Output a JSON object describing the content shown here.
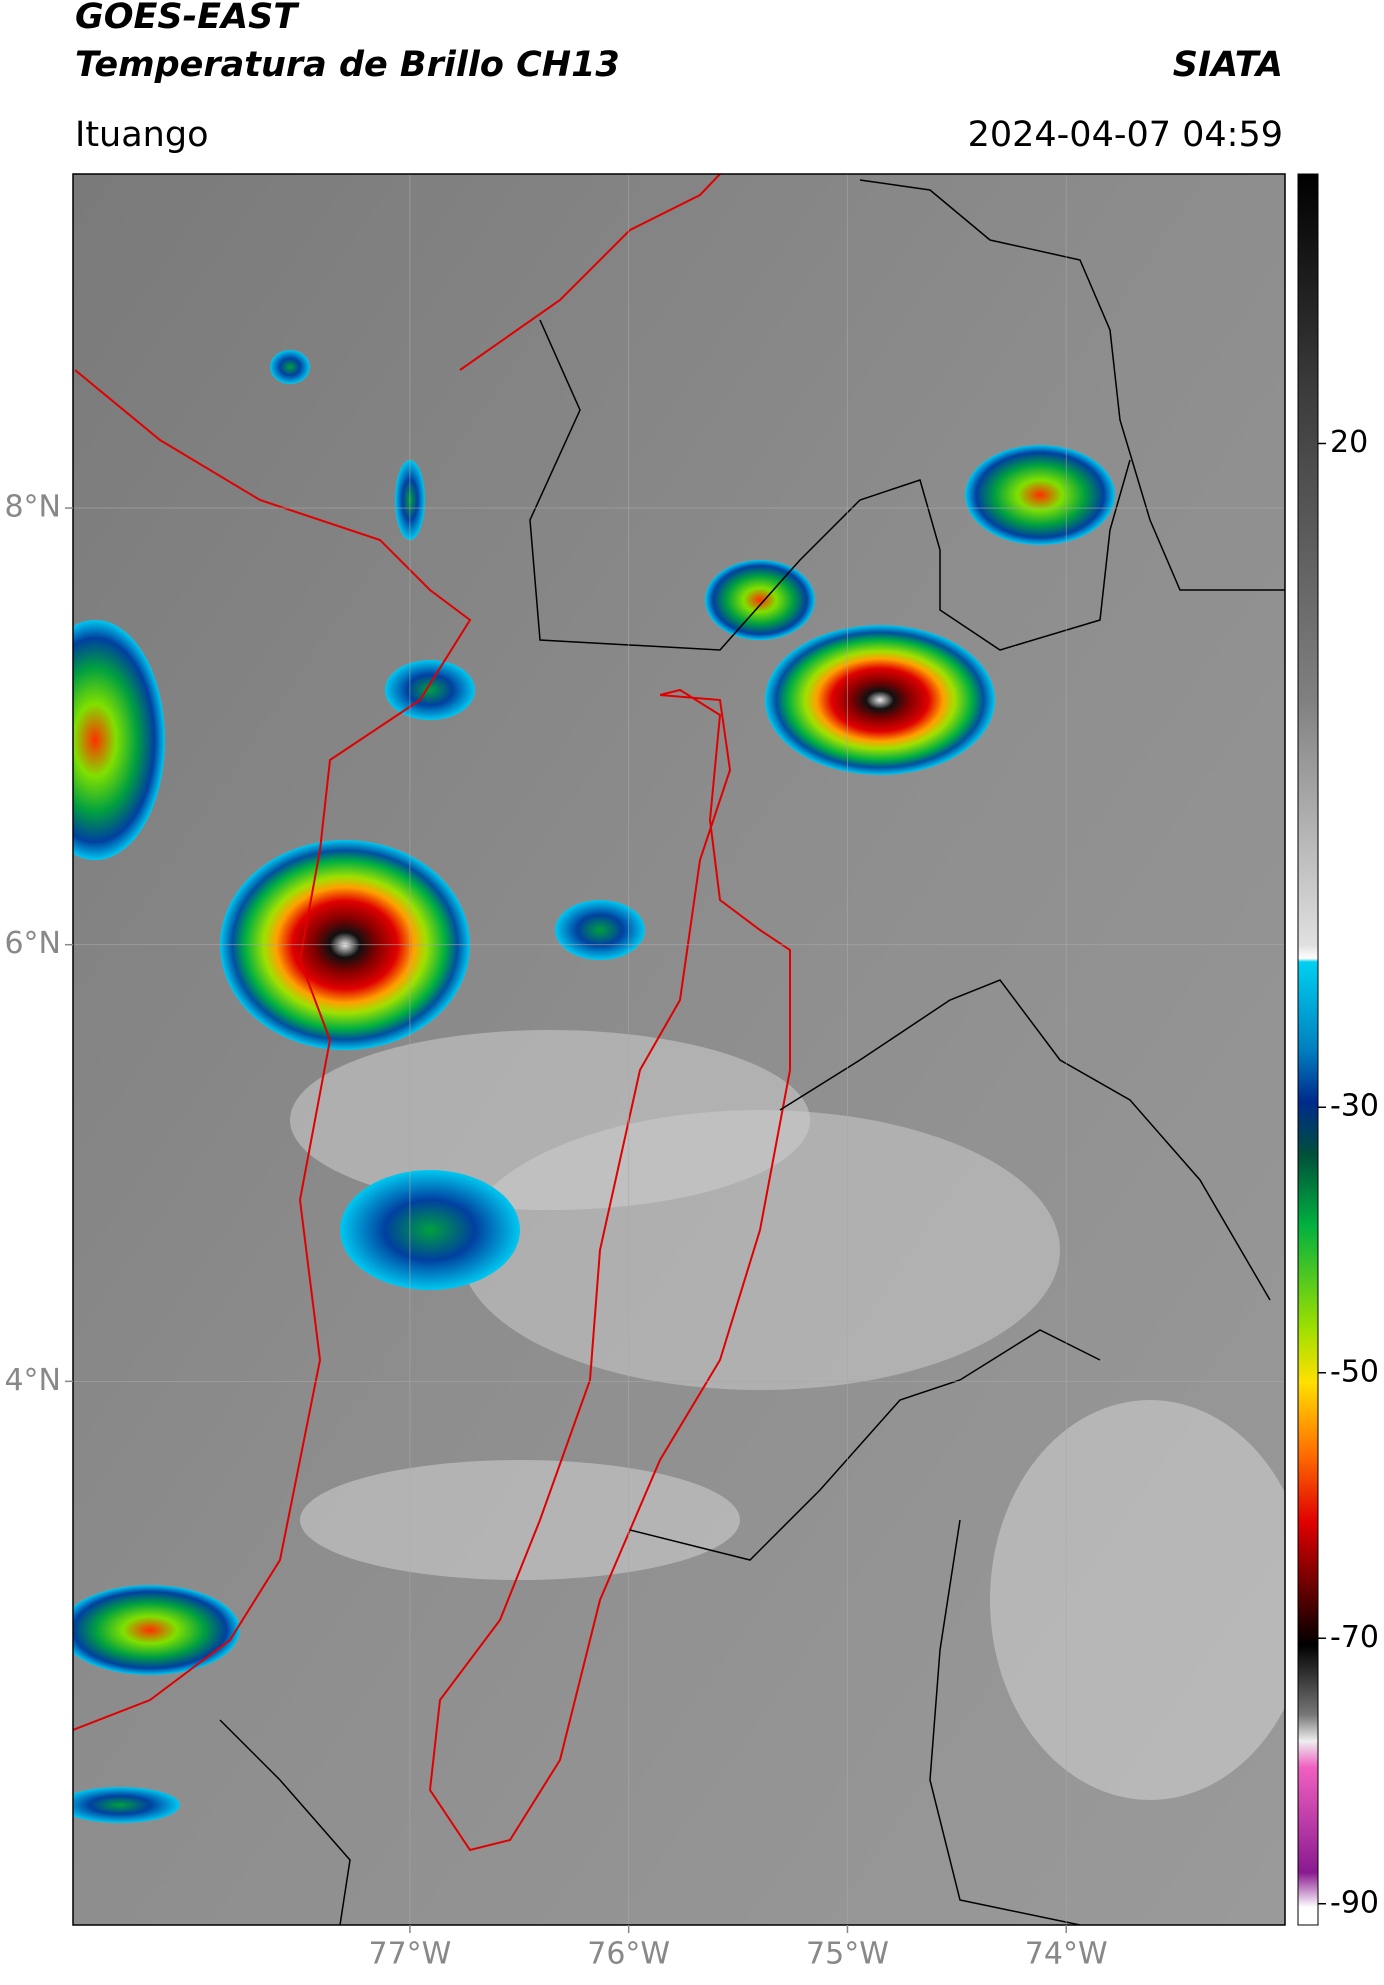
{
  "header": {
    "title": "GOES-EAST",
    "subtitle": "Temperatura de Brillo CH13",
    "source": "SIATA",
    "location": "Ituango",
    "datetime": "2024-04-07 04:59"
  },
  "map": {
    "xlim": [
      -78.54,
      -73.0
    ],
    "ylim": [
      1.51,
      9.53
    ],
    "xticks": [
      {
        "value": -77,
        "label": "77°W"
      },
      {
        "value": -76,
        "label": "76°W"
      },
      {
        "value": -75,
        "label": "75°W"
      },
      {
        "value": -74,
        "label": "74°W"
      }
    ],
    "yticks": [
      {
        "value": 8,
        "label": "8°N"
      },
      {
        "value": 6,
        "label": "6°N"
      },
      {
        "value": 4,
        "label": "4°N"
      }
    ],
    "grid": true
  },
  "colorbar": {
    "lim": [
      -91.6,
      40.3
    ],
    "ticks": [
      20,
      -30,
      -50,
      -70,
      -90
    ]
  }
}
